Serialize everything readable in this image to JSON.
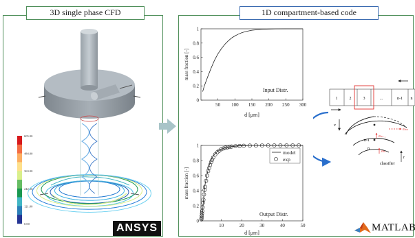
{
  "left_panel": {
    "title": "3D single phase CFD",
    "colorbar_ticks": [
      "605.00",
      "484.00",
      "363.00",
      "242.00",
      "121.00",
      "0.00"
    ],
    "colorbar_colors": [
      "#d7191c",
      "#f46d43",
      "#fdae61",
      "#fee08b",
      "#d9ef8b",
      "#66bd63",
      "#1a9850",
      "#41b6c4",
      "#2c7fb8",
      "#253494"
    ],
    "logo_text": "ANSYS"
  },
  "right_panel": {
    "title": "1D compartment-based code"
  },
  "arrow_color": "#a8c4c8",
  "input_plot": {
    "ylabel": "mass fraction [-]",
    "xlabel": "d [μm]",
    "annotation": "Input Distr.",
    "xticks": [
      "50",
      "100",
      "150",
      "200",
      "250",
      "300"
    ],
    "yticks": [
      "0",
      "0.2",
      "0.4",
      "0.6",
      "0.8",
      "1"
    ]
  },
  "output_plot": {
    "ylabel": "mass fraction [-]",
    "xlabel": "d [μm]",
    "annotation": "Output Distr.",
    "xticks": [
      "10",
      "20",
      "30",
      "40",
      "50"
    ],
    "yticks": [
      "0",
      "0.2",
      "0.4",
      "0.6",
      "0.8",
      "1"
    ],
    "legend": {
      "model": "model",
      "exp": "exp"
    }
  },
  "compartments": {
    "cells": [
      "1",
      "2",
      "3",
      "...",
      "n-1",
      "n"
    ],
    "highlight_color": "#e0302f",
    "labels": {
      "n_minus_1": "n-1",
      "n": "n",
      "v": "v",
      "classifier": "classifier",
      "r": "r",
      "m_n_minus_1": "mₙ₋₁",
      "m_n": "mₙ",
      "m_n_plus": "mₙₕ"
    }
  },
  "matlab_logo_text": "MATLAB",
  "chart_data": [
    {
      "type": "line",
      "title": "Input Distr.",
      "xlabel": "d [μm]",
      "ylabel": "mass fraction [-]",
      "xlim": [
        0,
        300
      ],
      "ylim": [
        0,
        1
      ],
      "series": [
        {
          "x": [
            5,
            10,
            20,
            30,
            40,
            50,
            60,
            70,
            80,
            90,
            100,
            110,
            120,
            130,
            140,
            150,
            160,
            170,
            180,
            200,
            220,
            250,
            300
          ],
          "values": [
            0.12,
            0.2,
            0.33,
            0.45,
            0.56,
            0.65,
            0.72,
            0.78,
            0.83,
            0.87,
            0.9,
            0.925,
            0.945,
            0.96,
            0.97,
            0.98,
            0.985,
            0.99,
            0.994,
            0.997,
            0.999,
            1.0,
            1.0
          ]
        }
      ]
    },
    {
      "type": "scatter",
      "title": "Output Distr.",
      "xlabel": "d [μm]",
      "ylabel": "mass fraction [-]",
      "xlim": [
        0,
        50
      ],
      "ylim": [
        0,
        1
      ],
      "series": [
        {
          "name": "model",
          "x": [
            0.5,
            1,
            1.5,
            2,
            3,
            4,
            5,
            6,
            8,
            10,
            12,
            15,
            20,
            25,
            30,
            50
          ],
          "values": [
            0.0,
            0.2,
            0.35,
            0.48,
            0.62,
            0.73,
            0.81,
            0.86,
            0.92,
            0.95,
            0.97,
            0.985,
            0.995,
            1.0,
            1.0,
            1.0
          ]
        },
        {
          "name": "exp",
          "x": [
            0.2,
            0.3,
            0.4,
            0.5,
            0.6,
            0.8,
            1.0,
            1.2,
            1.5,
            1.8,
            2.0,
            2.5,
            3.0,
            3.5,
            4.0,
            4.5,
            5.0,
            5.5,
            6.0,
            7.0,
            8.0,
            9.0,
            10,
            11,
            12,
            13,
            14,
            15,
            17,
            19,
            21,
            24,
            27,
            30,
            33,
            36,
            39,
            42,
            45,
            48
          ],
          "values": [
            0.02,
            0.04,
            0.07,
            0.1,
            0.13,
            0.18,
            0.24,
            0.28,
            0.35,
            0.41,
            0.45,
            0.53,
            0.6,
            0.66,
            0.7,
            0.74,
            0.78,
            0.81,
            0.84,
            0.88,
            0.91,
            0.93,
            0.95,
            0.96,
            0.97,
            0.975,
            0.98,
            0.985,
            0.99,
            0.993,
            0.995,
            0.997,
            0.998,
            0.999,
            1.0,
            1.0,
            1.0,
            1.0,
            1.0,
            1.0
          ]
        }
      ]
    }
  ]
}
